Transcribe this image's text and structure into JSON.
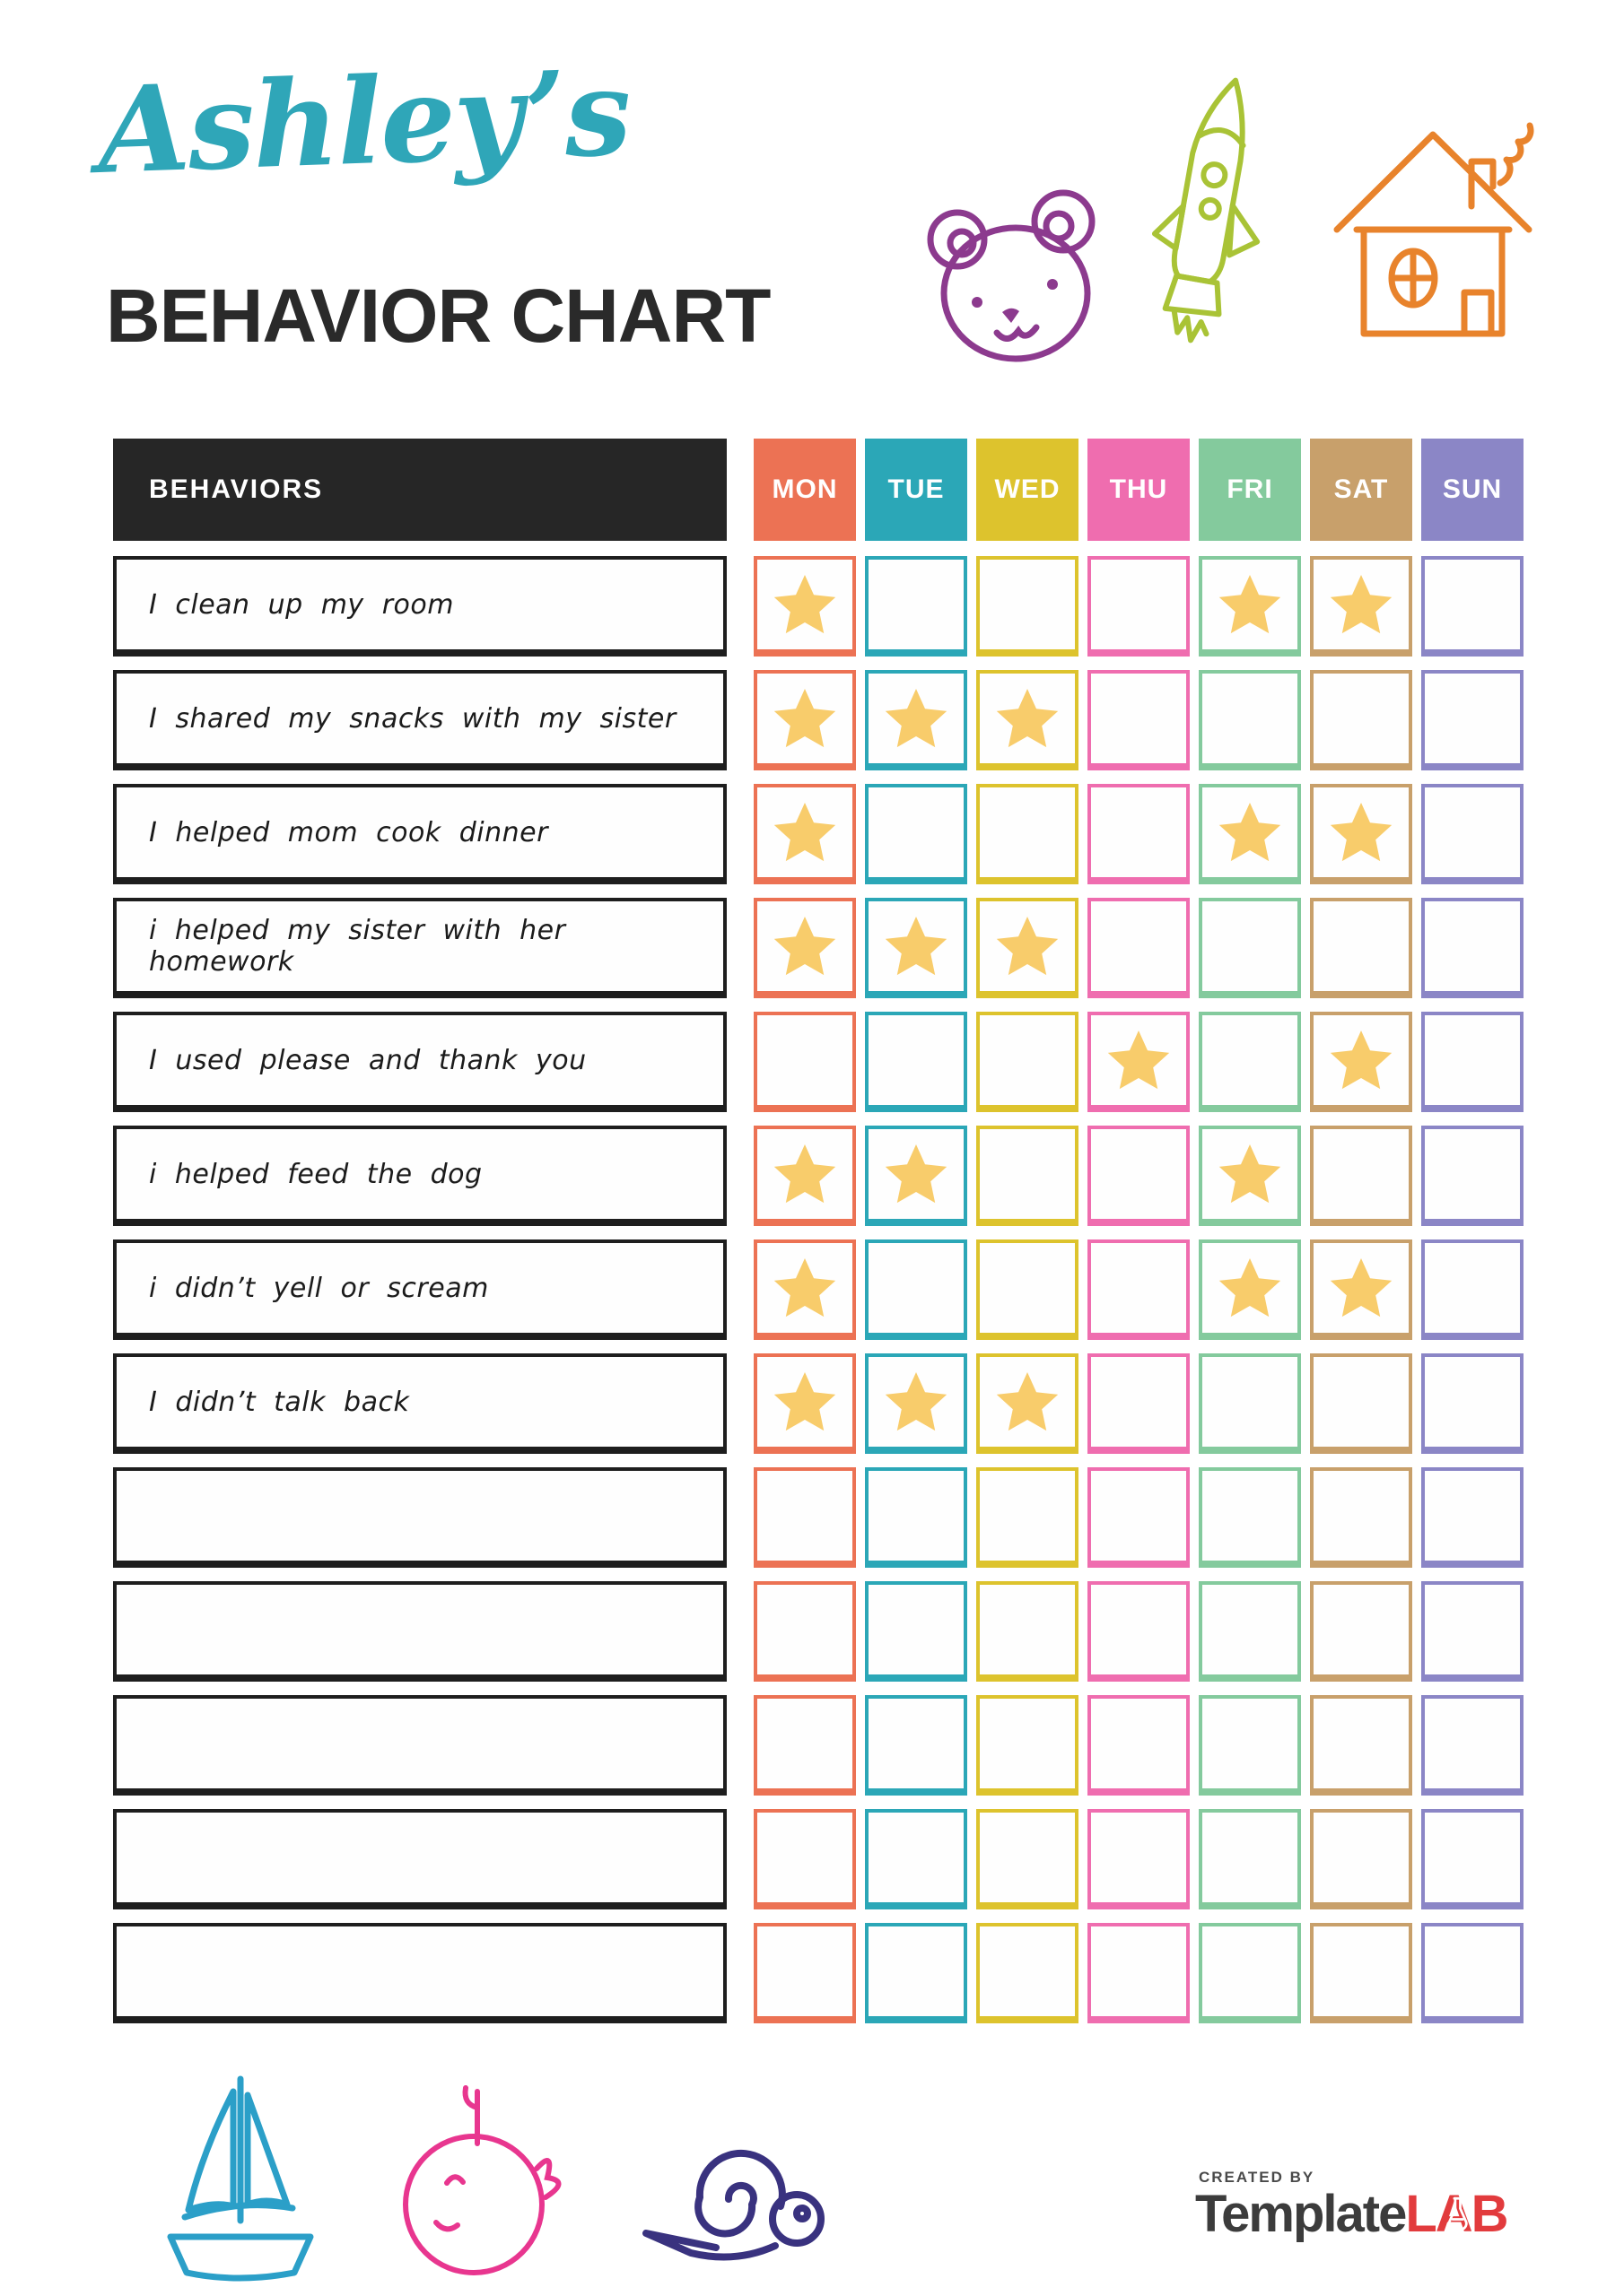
{
  "header": {
    "name": "Ashley’s",
    "title": "BEHAVIOR CHART",
    "name_color": "#2FA6B8",
    "title_color": "#2A2A2A"
  },
  "table": {
    "behaviors_header": "BEHAVIORS",
    "header_bg": "#262626",
    "star_color": "#F8CC6B",
    "row_border_color": "#1E1E1E",
    "days": [
      {
        "label": "MON",
        "color": "#EC7254"
      },
      {
        "label": "TUE",
        "color": "#2BA7B7"
      },
      {
        "label": "WED",
        "color": "#DDC32D"
      },
      {
        "label": "THU",
        "color": "#EF6DAF"
      },
      {
        "label": "FRI",
        "color": "#84CA9D"
      },
      {
        "label": "SAT",
        "color": "#C8A06B"
      },
      {
        "label": "SUN",
        "color": "#8B86C6"
      }
    ],
    "rows": [
      {
        "label": "I clean up my room",
        "stars": [
          1,
          0,
          0,
          0,
          1,
          1,
          0
        ]
      },
      {
        "label": "I shared my snacks with my sister",
        "stars": [
          1,
          1,
          1,
          0,
          0,
          0,
          0
        ]
      },
      {
        "label": "I helped mom cook dinner",
        "stars": [
          1,
          0,
          0,
          0,
          1,
          1,
          0
        ]
      },
      {
        "label": "i helped my sister with her homework",
        "stars": [
          1,
          1,
          1,
          0,
          0,
          0,
          0
        ]
      },
      {
        "label": "I used please and thank you",
        "stars": [
          0,
          0,
          0,
          1,
          0,
          1,
          0
        ]
      },
      {
        "label": "i helped feed the dog",
        "stars": [
          1,
          1,
          0,
          0,
          1,
          0,
          0
        ]
      },
      {
        "label": "i didn’t yell or scream",
        "stars": [
          1,
          0,
          0,
          0,
          1,
          1,
          0
        ]
      },
      {
        "label": "I didn’t talk back",
        "stars": [
          1,
          1,
          1,
          0,
          0,
          0,
          0
        ]
      },
      {
        "label": "",
        "stars": [
          0,
          0,
          0,
          0,
          0,
          0,
          0
        ]
      },
      {
        "label": "",
        "stars": [
          0,
          0,
          0,
          0,
          0,
          0,
          0
        ]
      },
      {
        "label": "",
        "stars": [
          0,
          0,
          0,
          0,
          0,
          0,
          0
        ]
      },
      {
        "label": "",
        "stars": [
          0,
          0,
          0,
          0,
          0,
          0,
          0
        ]
      },
      {
        "label": "",
        "stars": [
          0,
          0,
          0,
          0,
          0,
          0,
          0
        ]
      }
    ]
  },
  "decorations": {
    "top": [
      {
        "name": "bear-doodle",
        "color": "#8C3A8E"
      },
      {
        "name": "rocket-doodle",
        "color": "#A9C336"
      },
      {
        "name": "house-doodle",
        "color": "#E8832C"
      }
    ],
    "bottom": [
      {
        "name": "sailboat-doodle",
        "color": "#2B9FC8"
      },
      {
        "name": "whale-doodle",
        "color": "#E8368F"
      },
      {
        "name": "snail-doodle",
        "color": "#39327F"
      }
    ]
  },
  "footer": {
    "created_by": "CREATED BY",
    "brand_name": "Template",
    "brand_suffix": "LAB",
    "brand_suffix_color": "#E23B3D"
  }
}
